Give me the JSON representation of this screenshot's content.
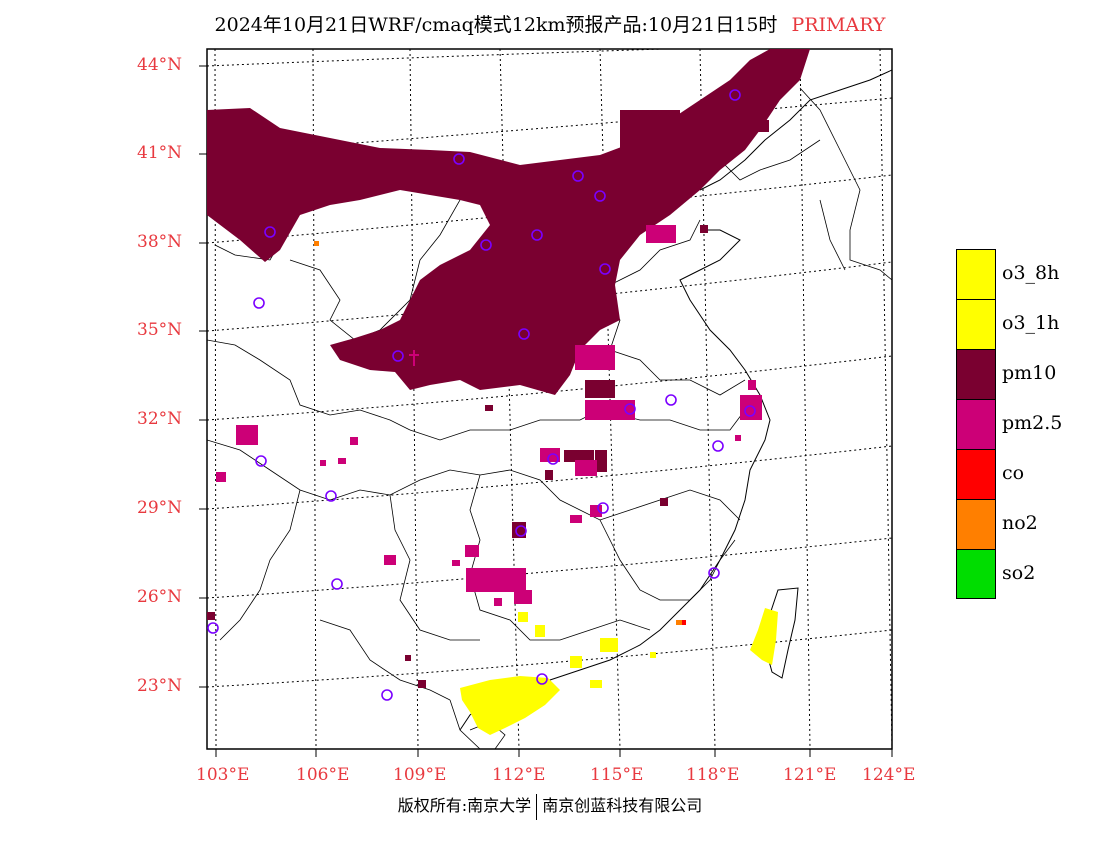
{
  "title": {
    "main": "2024年10月21日WRF/cmaq模式12km预报产品:10月21日15时",
    "tag": "PRIMARY"
  },
  "map": {
    "lat_labels": [
      "44°N",
      "41°N",
      "38°N",
      "35°N",
      "32°N",
      "29°N",
      "26°N",
      "23°N"
    ],
    "lon_labels": [
      "103°E",
      "106°E",
      "109°E",
      "112°E",
      "115°E",
      "118°E",
      "121°E",
      "124°E"
    ],
    "colors": {
      "o3_8h": "#ffff00",
      "o3_1h": "#ffff00",
      "pm10": "#7a0030",
      "pm25": "#cc0077",
      "co": "#ff0000",
      "no2": "#ff7f00",
      "so2": "#00dd00",
      "station": "#7b00ff",
      "label": "#e8393f"
    }
  },
  "legend": [
    {
      "label": "o3_8h",
      "color": "#ffff00"
    },
    {
      "label": "o3_1h",
      "color": "#ffff00"
    },
    {
      "label": "pm10",
      "color": "#7a0030"
    },
    {
      "label": "pm2.5",
      "color": "#cc0077"
    },
    {
      "label": "co",
      "color": "#ff0000"
    },
    {
      "label": "no2",
      "color": "#ff7f00"
    },
    {
      "label": "so2",
      "color": "#00dd00"
    }
  ],
  "footer": {
    "left": "版权所有:南京大学",
    "right": "南京创蓝科技有限公司"
  }
}
